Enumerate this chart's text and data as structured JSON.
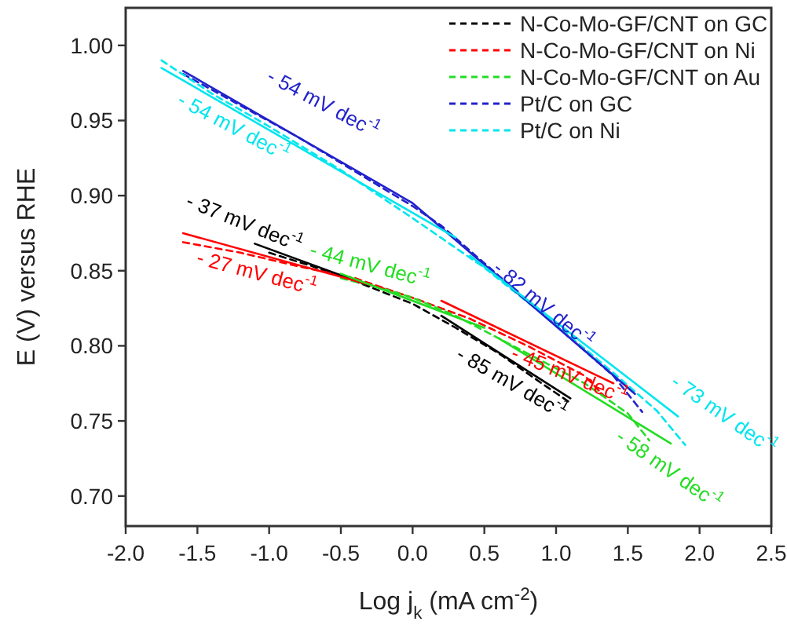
{
  "chart_data": {
    "type": "line",
    "xlabel": "Log j$_{k}$ (mA cm$^{-2}$)",
    "ylabel": "E (V) versus RHE",
    "xlim": [
      -2.0,
      2.5
    ],
    "ylim": [
      0.68,
      1.025
    ],
    "xticks": [
      {
        "value": -2,
        "label": "-2.0"
      },
      {
        "value": -1.5,
        "label": "-1.5"
      },
      {
        "value": -1,
        "label": "-1.0"
      },
      {
        "value": -0.5,
        "label": "-0.5"
      },
      {
        "value": 0,
        "label": "0.0"
      },
      {
        "value": 0.5,
        "label": "0.5"
      },
      {
        "value": 1,
        "label": "1.0"
      },
      {
        "value": 1.5,
        "label": "1.5"
      },
      {
        "value": 2,
        "label": "2.0"
      },
      {
        "value": 2.5,
        "label": "2.5"
      }
    ],
    "yticks": [
      {
        "value": 0.7,
        "label": "0.70"
      },
      {
        "value": 0.75,
        "label": "0.75"
      },
      {
        "value": 0.8,
        "label": "0.80"
      },
      {
        "value": 0.85,
        "label": "0.85"
      },
      {
        "value": 0.9,
        "label": "0.90"
      },
      {
        "value": 0.95,
        "label": "0.95"
      },
      {
        "value": 1.0,
        "label": "1.00"
      }
    ],
    "grid": false,
    "legend": "top right",
    "marker": "none",
    "series": [
      {
        "name": "N-Co-Mo-GF/CNT on GC",
        "color": "#000000",
        "line_style": "dashed",
        "x": [
          -1.0,
          -0.7,
          -0.4,
          0,
          0.3,
          0.6,
          0.9,
          1.1
        ],
        "values": [
          0.862,
          0.853,
          0.843,
          0.828,
          0.812,
          0.795,
          0.775,
          0.762
        ]
      },
      {
        "name": "N-Co-Mo-GF/CNT on Ni",
        "color": "#ff0000",
        "line_style": "dashed",
        "x": [
          -1.6,
          -1.2,
          -0.8,
          -0.4,
          0,
          0.4,
          0.8,
          1.2,
          1.34
        ],
        "values": [
          0.869,
          0.862,
          0.853,
          0.845,
          0.832,
          0.818,
          0.8,
          0.78,
          0.766
        ]
      },
      {
        "name": "N-Co-Mo-GF/CNT on Au",
        "color": "#22dd22",
        "line_style": "dashed",
        "x": [
          -0.5,
          -0.2,
          0,
          0.3,
          0.6,
          0.9,
          1.2,
          1.5,
          1.65
        ],
        "values": [
          0.845,
          0.838,
          0.832,
          0.82,
          0.805,
          0.79,
          0.775,
          0.755,
          0.737
        ]
      },
      {
        "name": "Pt/C on GC",
        "color": "#2222cc",
        "line_style": "dashed",
        "x": [
          -1.6,
          -1.2,
          -0.8,
          -0.4,
          0,
          0.2,
          0.5,
          0.8,
          1.1,
          1.4,
          1.6
        ],
        "values": [
          0.981,
          0.96,
          0.939,
          0.916,
          0.893,
          0.88,
          0.855,
          0.83,
          0.805,
          0.78,
          0.756
        ]
      },
      {
        "name": "Pt/C on Ni",
        "color": "#00e5ee",
        "line_style": "dashed",
        "x": [
          -1.75,
          -1.4,
          -1.0,
          -0.5,
          0,
          0.5,
          1.0,
          1.4,
          1.7,
          1.9
        ],
        "values": [
          0.99,
          0.968,
          0.946,
          0.917,
          0.885,
          0.852,
          0.814,
          0.782,
          0.757,
          0.734
        ]
      },
      {
        "type": "line",
        "color": "#000000",
        "line_style": "solid",
        "x": [
          -1.1,
          -0.3,
          -0.05,
          0.2,
          1.1
        ],
        "values": [
          0.868,
          0.84,
          null,
          0.82,
          0.765
        ]
      },
      {
        "type": "line",
        "color": "#ff0000",
        "line_style": "solid",
        "x": [
          -1.6,
          -0.2,
          0.0,
          0.2,
          1.4
        ],
        "values": [
          0.875,
          0.838,
          null,
          0.83,
          0.775
        ]
      },
      {
        "type": "line",
        "color": "#22dd22",
        "line_style": "solid",
        "x": [
          -0.5,
          0.5,
          0.55,
          0.6,
          1.8
        ],
        "values": [
          0.848,
          0.812,
          null,
          0.805,
          0.735
        ]
      },
      {
        "type": "line",
        "color": "#2222cc",
        "line_style": "solid",
        "x": [
          -1.6,
          0.0,
          1.55
        ],
        "values": [
          0.983,
          0.895,
          0.768
        ]
      },
      {
        "type": "line",
        "color": "#00e5ee",
        "line_style": "solid",
        "x": [
          -1.75,
          0.3,
          0.35,
          0.4,
          1.85
        ],
        "values": [
          0.985,
          0.872,
          null,
          0.86,
          0.753
        ]
      }
    ],
    "annotations": [
      "- 54 mV dec$^{-1}$",
      "- 54 mV dec$^{-1}$",
      "- 37 mV dec$^{-1}$",
      "- 27 mV dec$^{-1}$",
      "- 44 mV dec$^{-1}$",
      "- 82 mV dec$^{-1}$",
      "- 45 mV dec$^{-1}$",
      "- 85 mV dec$^{-1}$",
      "- 73 mV dec$^{-1}$",
      "- 58 mV dec$^{-1}$"
    ]
  }
}
